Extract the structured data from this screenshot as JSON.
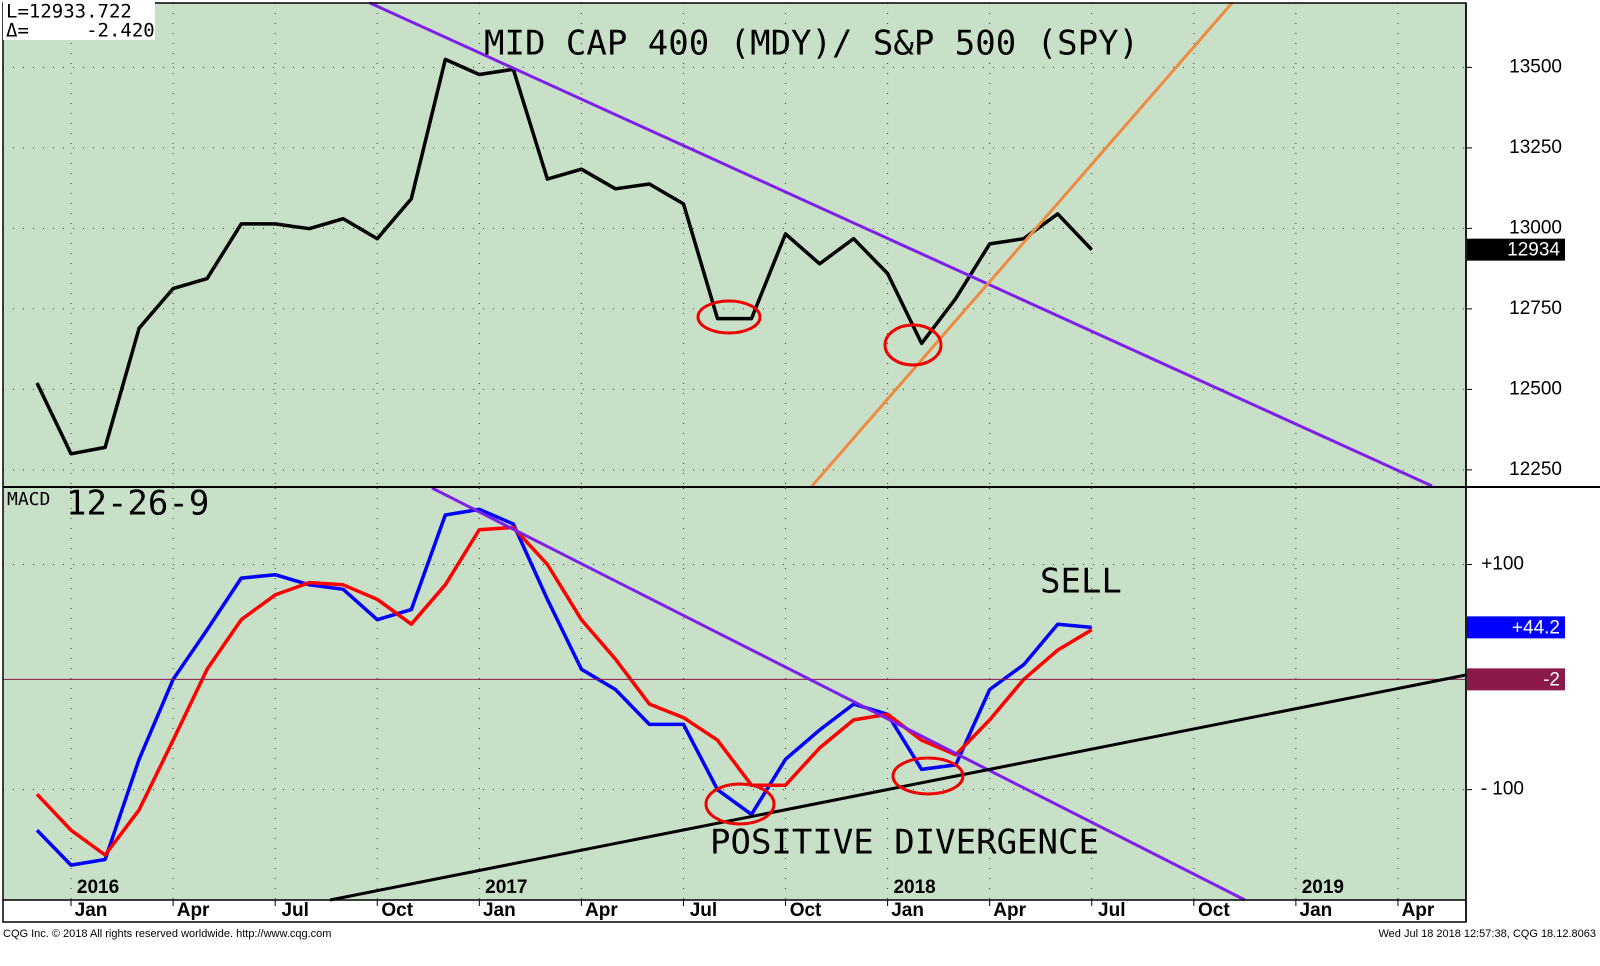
{
  "readout": [
    "L=12933.722",
    "Δ=     -2.420"
  ],
  "footer": {
    "left": "CQG Inc. © 2018 All rights reserved worldwide. http://www.cqg.com",
    "right": "Wed Jul 18 2018 12:57:38, CQG 18.12.8063"
  },
  "chart_data": [
    {
      "type": "line",
      "title": "MID CAP 400 (MDY)/ S&P 500 (SPY)",
      "x": [
        "2015-12",
        "2016-01",
        "2016-02",
        "2016-03",
        "2016-04",
        "2016-05",
        "2016-06",
        "2016-07",
        "2016-08",
        "2016-09",
        "2016-10",
        "2016-11",
        "2016-12",
        "2017-01",
        "2017-02",
        "2017-03",
        "2017-04",
        "2017-05",
        "2017-06",
        "2017-07",
        "2017-08",
        "2017-09",
        "2017-10",
        "2017-11",
        "2017-12",
        "2018-01",
        "2018-02",
        "2018-03",
        "2018-04",
        "2018-05",
        "2018-06",
        "2018-07"
      ],
      "series": [
        {
          "color": "#000000",
          "values": [
            12520,
            12300,
            12320,
            12690,
            12813,
            12844,
            13014,
            13014,
            12999,
            13030,
            12968,
            13092,
            13525,
            13478,
            13494,
            13153,
            13184,
            13123,
            13138,
            13076,
            12720,
            12720,
            12983,
            12890,
            12968,
            12860,
            12643,
            12782,
            12952,
            12968,
            13045,
            12934
          ]
        }
      ],
      "xlim": [
        "2015-11",
        "2019-06"
      ],
      "ylim": [
        12200,
        13700
      ],
      "yticks": [
        12250,
        12500,
        12750,
        13000,
        13250,
        13500
      ],
      "grid": true,
      "markers": [
        {
          "value": 12934,
          "color": "#000000"
        }
      ]
    },
    {
      "type": "line",
      "title": "12-26-9",
      "label": "MACD",
      "annotations": [
        "SELL",
        "POSITIVE DIVERGENCE"
      ],
      "x": [
        "2015-12",
        "2016-01",
        "2016-02",
        "2016-03",
        "2016-04",
        "2016-05",
        "2016-06",
        "2016-07",
        "2016-08",
        "2016-09",
        "2016-10",
        "2016-11",
        "2016-12",
        "2017-01",
        "2017-02",
        "2017-03",
        "2017-04",
        "2017-05",
        "2017-06",
        "2017-07",
        "2017-08",
        "2017-09",
        "2017-10",
        "2017-11",
        "2017-12",
        "2018-01",
        "2018-02",
        "2018-03",
        "2018-04",
        "2018-05",
        "2018-06",
        "2018-07"
      ],
      "series": [
        {
          "color": "#0000ff",
          "values": [
            -136,
            -167,
            -162,
            -73,
            -2,
            42,
            88,
            91,
            82,
            78,
            51,
            60,
            144,
            149,
            136,
            69,
            7,
            -11,
            -42,
            -42,
            -100,
            -122,
            -73,
            -47,
            -24,
            -33,
            -82,
            -78,
            -11,
            11,
            47,
            44.2
          ]
        },
        {
          "color": "#ff0000",
          "values": [
            -104,
            -136,
            -158,
            -118,
            -56,
            7,
            51,
            73,
            84,
            82,
            69,
            47,
            82,
            131,
            133,
            100,
            51,
            16,
            -24,
            -36,
            -56,
            -96,
            -96,
            -63,
            -38,
            -33,
            -56,
            -69,
            -38,
            -2,
            24,
            42
          ]
        }
      ],
      "xlim": [
        "2015-11",
        "2019-06"
      ],
      "xticks": [
        {
          "value": "2016-01",
          "label": "Jan"
        },
        {
          "value": "2016-04",
          "label": "Apr"
        },
        {
          "value": "2016-07",
          "label": "Jul"
        },
        {
          "value": "2016-10",
          "label": "Oct"
        },
        {
          "value": "2017-01",
          "label": "Jan"
        },
        {
          "value": "2017-04",
          "label": "Apr"
        },
        {
          "value": "2017-07",
          "label": "Jul"
        },
        {
          "value": "2017-10",
          "label": "Oct"
        },
        {
          "value": "2018-01",
          "label": "Jan"
        },
        {
          "value": "2018-04",
          "label": "Apr"
        },
        {
          "value": "2018-07",
          "label": "Jul"
        },
        {
          "value": "2018-10",
          "label": "Oct"
        },
        {
          "value": "2019-01",
          "label": "Jan"
        },
        {
          "value": "2019-04",
          "label": "Apr"
        }
      ],
      "years": [
        {
          "value": "2016-01",
          "label": "2016"
        },
        {
          "value": "2017-01",
          "label": "2017"
        },
        {
          "value": "2018-01",
          "label": "2018"
        },
        {
          "value": "2019-01",
          "label": "2019"
        }
      ],
      "ylim": [
        -198,
        168
      ],
      "yticks": [
        {
          "value": 100,
          "label": "+100"
        },
        {
          "value": -100,
          "label": "- 100"
        }
      ],
      "grid": true,
      "markers": [
        {
          "value": 44.2,
          "label": "+44.2",
          "color": "#0000ff"
        },
        {
          "value": -2,
          "label": "-2",
          "color": "#8b1a4a"
        }
      ]
    }
  ]
}
